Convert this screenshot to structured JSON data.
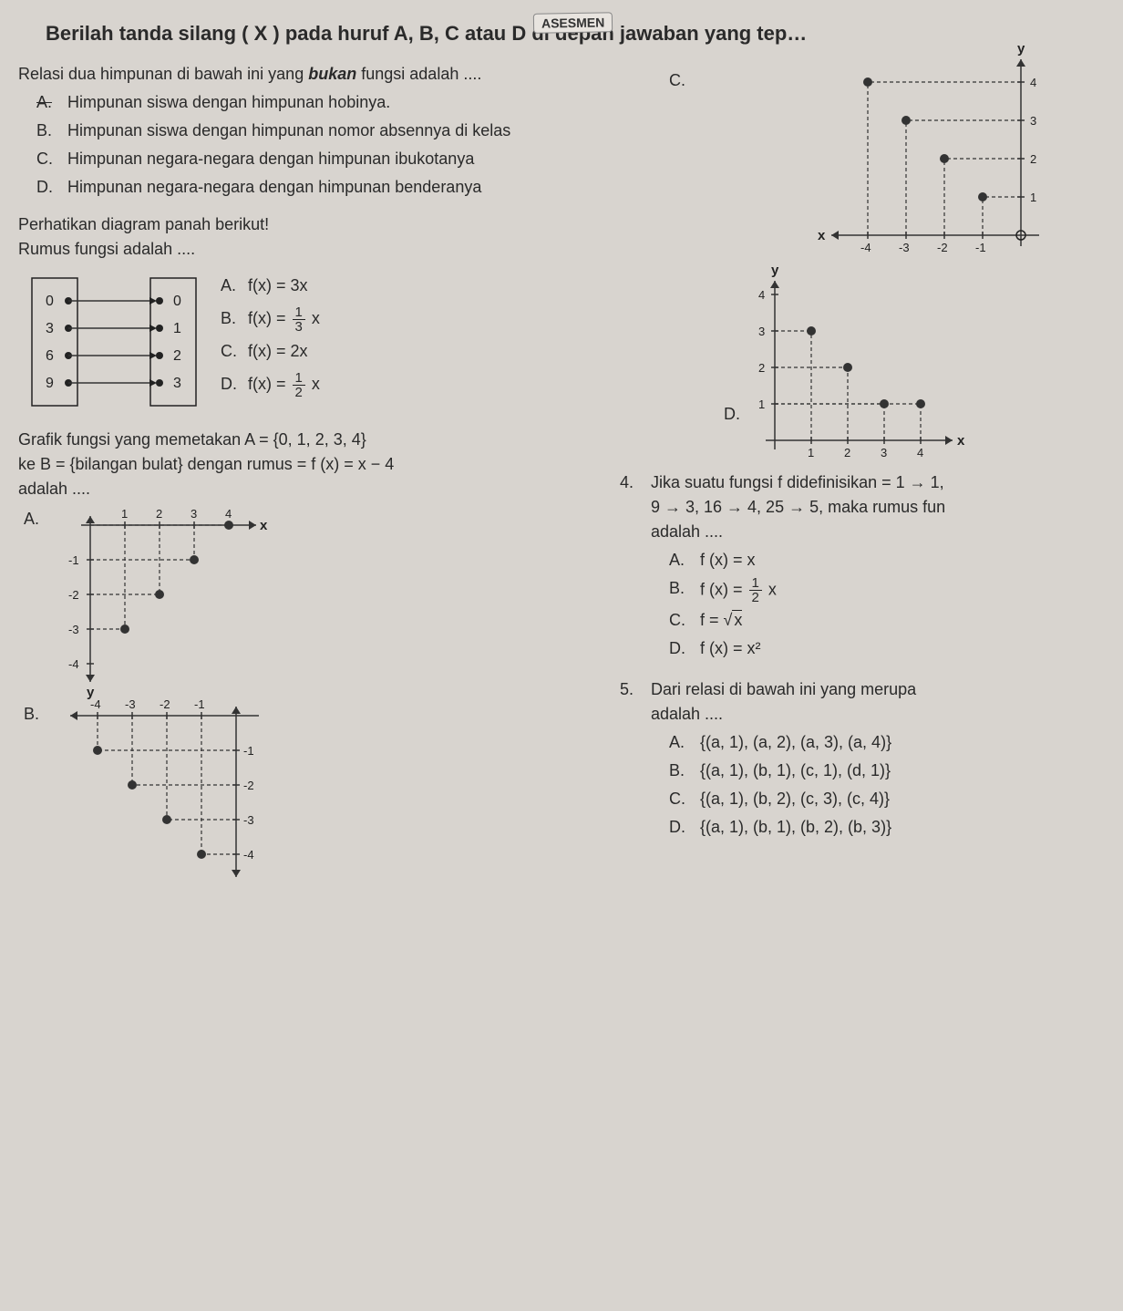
{
  "banner": "ASESMEN",
  "header": "Berilah tanda silang ( X ) pada huruf A, B, C atau D di depan jawaban yang tep…",
  "q1": {
    "text_a": "Relasi dua himpunan di bawah ini yang ",
    "text_b": "bukan",
    "text_c": " fungsi adalah ....",
    "A": "Himpunan siswa dengan himpunan hobinya.",
    "B": "Himpunan siswa dengan himpunan nomor absennya di kelas",
    "C": "Himpunan negara-negara dengan himpunan ibukotanya",
    "D": "Himpunan negara-negara dengan himpunan benderanya",
    "optC": "C.",
    "optD": "D."
  },
  "q2": {
    "title": "Perhatikan diagram panah berikut!",
    "sub": "Rumus fungsi adalah ....",
    "left": [
      "0",
      "3",
      "6",
      "9"
    ],
    "right": [
      "0",
      "1",
      "2",
      "3"
    ],
    "A": "f(x) = 3x",
    "B_pre": "f(x) = ",
    "B_num": "1",
    "B_den": "3",
    "B_post": " x",
    "C": "f(x) = 2x",
    "D_pre": "f(x) = ",
    "D_num": "1",
    "D_den": "2",
    "D_post": " x",
    "labA": "A.",
    "labB": "B.",
    "labC": "C.",
    "labD": "D."
  },
  "q3": {
    "line1": "Grafik fungsi yang memetakan A = {0, 1, 2, 3, 4}",
    "line2": "ke B = {bilangan bulat} dengan rumus = f (x) = x − 4",
    "line3": "adalah ....",
    "labA": "A.",
    "labB": "B.",
    "graphA": {
      "x_ticks": [
        1,
        2,
        3,
        4
      ],
      "y_ticks": [
        -1,
        -2,
        -3,
        -4
      ],
      "points": [
        [
          1,
          -3
        ],
        [
          2,
          -2
        ],
        [
          3,
          -1
        ],
        [
          4,
          0
        ]
      ],
      "x_label": "x",
      "y_label": "y"
    },
    "graphB": {
      "x_ticks": [
        -4,
        -3,
        -2,
        -1
      ],
      "y_ticks": [
        -1,
        -2,
        -3,
        -4
      ],
      "points": [
        [
          -4,
          -1
        ],
        [
          -3,
          -2
        ],
        [
          -2,
          -3
        ],
        [
          -1,
          -4
        ]
      ]
    },
    "graphC": {
      "x_ticks": [
        -4,
        -3,
        -2,
        -1
      ],
      "y_ticks": [
        1,
        2,
        3,
        4
      ],
      "points": [
        [
          -4,
          4
        ],
        [
          -3,
          3
        ],
        [
          -2,
          2
        ],
        [
          -1,
          1
        ]
      ],
      "hollow": [
        0,
        0
      ],
      "x_label": "x",
      "y_label": "y"
    },
    "graphD": {
      "x_ticks": [
        1,
        2,
        3,
        4
      ],
      "y_ticks": [
        1,
        2,
        3,
        4
      ],
      "points": [
        [
          1,
          3
        ],
        [
          2,
          2
        ],
        [
          3,
          1
        ],
        [
          4,
          1
        ]
      ],
      "x_label": "x",
      "y_label": "y"
    }
  },
  "q4": {
    "line1": "Jika suatu fungsi f didefinisikan = 1 → 1,",
    "line2": "9 → 3, 16 → 4, 25 → 5, maka rumus fun",
    "line3": "adalah ....",
    "num": "4.",
    "A": "f (x) = x",
    "B_pre": "f (x) = ",
    "B_num": "1",
    "B_den": "2",
    "B_post": " x",
    "C_pre": "f = ",
    "C_rad": "√",
    "C_x": "x",
    "D": "f (x) = x²",
    "labA": "A.",
    "labB": "B.",
    "labC": "C.",
    "labD": "D."
  },
  "q5": {
    "num": "5.",
    "line1": "Dari relasi di bawah ini yang merupa",
    "line2": "adalah ....",
    "A": "{(a, 1), (a, 2), (a, 3), (a, 4)}",
    "B": "{(a, 1), (b, 1), (c, 1), (d, 1)}",
    "C": "{(a, 1), (b, 2), (c, 3), (c, 4)}",
    "D": "{(a, 1), (b, 1), (b, 2), (b, 3)}",
    "labA": "A.",
    "labB": "B.",
    "labC": "C.",
    "labD": "D."
  }
}
